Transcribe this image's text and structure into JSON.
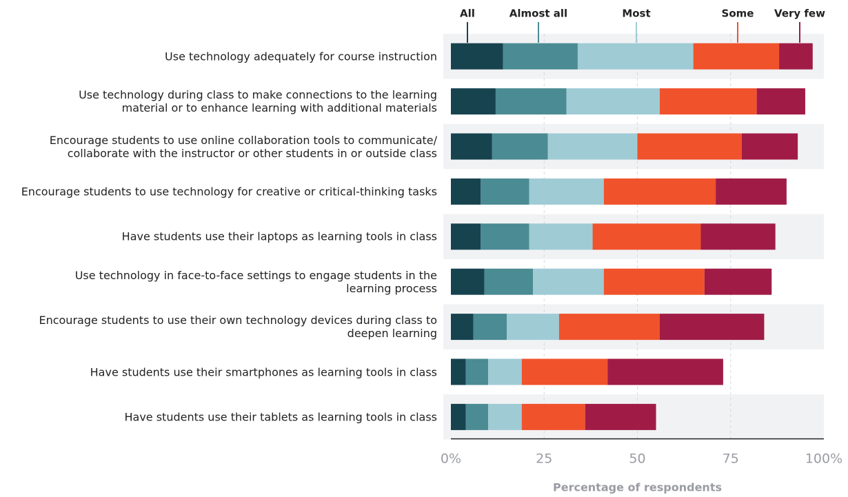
{
  "chart_data": {
    "type": "stacked_bar_horizontal",
    "categories": [
      "Use technology adequately for course instruction",
      "Use technology during class to make connections to the learning\nmaterial or to enhance learning with additional materials",
      "Encourage students to use online collaboration tools to communicate/\ncollaborate with the instructor or other students in or outside class",
      "Encourage students to use technology for creative or critical-thinking tasks",
      "Have students use their laptops as learning tools in class",
      "Use technology in face-to-face settings to engage students in the\nlearning process",
      "Encourage students to use their own technology devices during class to\ndeepen learning",
      "Have students use their smartphones as learning tools in class",
      "Have students use their tablets as learning tools in class"
    ],
    "series": [
      {
        "name": "All",
        "color": "#17434f",
        "values": [
          14,
          12,
          11,
          8,
          8,
          9,
          6,
          4,
          4
        ]
      },
      {
        "name": "Almost all",
        "color": "#4b8b93",
        "values": [
          20,
          19,
          15,
          13,
          13,
          13,
          9,
          6,
          6
        ]
      },
      {
        "name": "Most",
        "color": "#9fcbd5",
        "values": [
          31,
          25,
          24,
          20,
          17,
          19,
          14,
          9,
          9
        ]
      },
      {
        "name": "Some",
        "color": "#f0522c",
        "values": [
          23,
          26,
          28,
          30,
          29,
          27,
          27,
          23,
          17
        ]
      },
      {
        "name": "Very few",
        "color": "#a01c46",
        "values": [
          9,
          13,
          15,
          19,
          20,
          18,
          28,
          31,
          19
        ]
      }
    ],
    "xlim": [
      0,
      100
    ],
    "xticks": [
      {
        "value": 0,
        "label": "0%"
      },
      25,
      50,
      75,
      {
        "value": 100,
        "label": "100%"
      }
    ],
    "xlabel": "Percentage of respondents",
    "grid": true,
    "legend": "top"
  }
}
